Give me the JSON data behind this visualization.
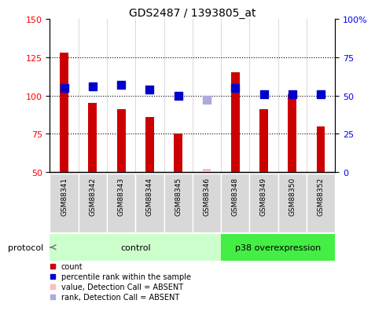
{
  "title": "GDS2487 / 1393805_at",
  "samples": [
    "GSM88341",
    "GSM88342",
    "GSM88343",
    "GSM88344",
    "GSM88345",
    "GSM88346",
    "GSM88348",
    "GSM88349",
    "GSM88350",
    "GSM88352"
  ],
  "bar_values": [
    128,
    95,
    91,
    86,
    75,
    null,
    115,
    91,
    101,
    80
  ],
  "bar_absent": [
    null,
    null,
    null,
    null,
    null,
    52,
    null,
    null,
    null,
    null
  ],
  "rank_values_right": [
    55,
    56,
    57,
    54,
    50,
    null,
    55,
    51,
    51,
    51
  ],
  "rank_absent_right": [
    null,
    null,
    null,
    null,
    null,
    47,
    null,
    null,
    null,
    null
  ],
  "ylim_left": [
    50,
    150
  ],
  "ylim_right": [
    0,
    100
  ],
  "yticks_left": [
    50,
    75,
    100,
    125,
    150
  ],
  "yticks_right": [
    0,
    25,
    50,
    75,
    100
  ],
  "ytick_labels_left": [
    "50",
    "75",
    "100",
    "125",
    "150"
  ],
  "ytick_labels_right": [
    "0",
    "25",
    "50",
    "75",
    "100%"
  ],
  "hlines": [
    75,
    100,
    125
  ],
  "control_indices": [
    0,
    1,
    2,
    3,
    4,
    5
  ],
  "p38_indices": [
    6,
    7,
    8,
    9
  ],
  "bar_color": "#cc0000",
  "bar_absent_color": "#ffbbbb",
  "rank_color": "#0000cc",
  "rank_absent_color": "#aaaadd",
  "control_label": "control",
  "p38_label": "p38 overexpression",
  "protocol_label": "protocol",
  "control_bg": "#ccffcc",
  "p38_bg": "#44ee44",
  "sample_bg": "#d8d8d8",
  "bar_width": 0.3,
  "rank_markersize": 7,
  "legend_items": [
    {
      "label": "count",
      "color": "#cc0000"
    },
    {
      "label": "percentile rank within the sample",
      "color": "#0000cc"
    },
    {
      "label": "value, Detection Call = ABSENT",
      "color": "#ffbbbb"
    },
    {
      "label": "rank, Detection Call = ABSENT",
      "color": "#aaaadd"
    }
  ]
}
